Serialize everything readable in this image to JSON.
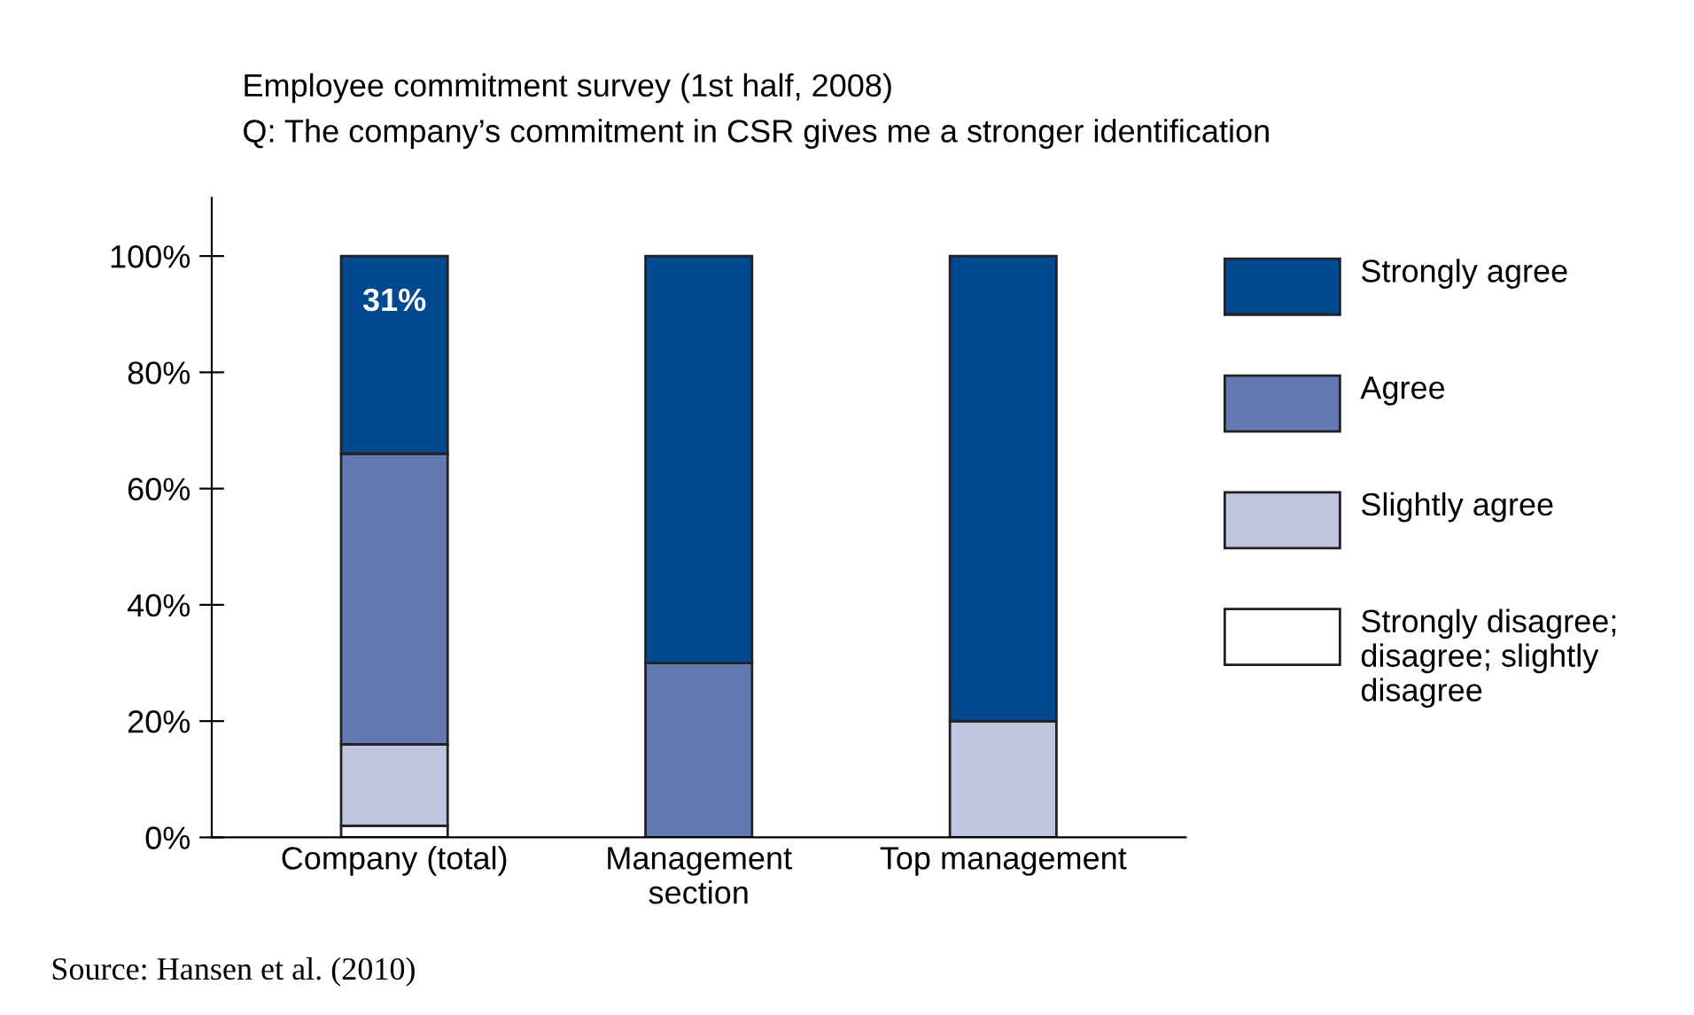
{
  "chart_data": {
    "type": "bar",
    "stacked": true,
    "title": "Employee commitment survey (1st half, 2008)",
    "subtitle": "Q: The company’s commitment in CSR gives me a stronger identification",
    "categories": [
      "Company (total)",
      "Management\nsection",
      "Top management"
    ],
    "series": [
      {
        "name": "Strongly disagree; disagree; slightly disagree",
        "color": "#ffffff",
        "values": [
          2,
          0,
          0
        ]
      },
      {
        "name": "Slightly agree",
        "color": "#c1c6e0",
        "values": [
          14,
          0,
          20
        ]
      },
      {
        "name": "Agree",
        "color": "#6479b1",
        "values": [
          50,
          30,
          0
        ]
      },
      {
        "name": "Strongly agree",
        "color": "#02498f",
        "values": [
          34,
          70,
          80
        ]
      }
    ],
    "ylim": [
      0,
      110
    ],
    "yticks": [
      {
        "value": 0,
        "label": "0%"
      },
      {
        "value": 20,
        "label": "20%"
      },
      {
        "value": 40,
        "label": "40%"
      },
      {
        "value": 60,
        "label": "60%"
      },
      {
        "value": 80,
        "label": "80%"
      },
      {
        "value": 100,
        "label": "100%"
      }
    ],
    "grid": false,
    "legend": "right",
    "annotations": [
      "31%",
      "Source: Hansen et al. (2010)"
    ]
  }
}
